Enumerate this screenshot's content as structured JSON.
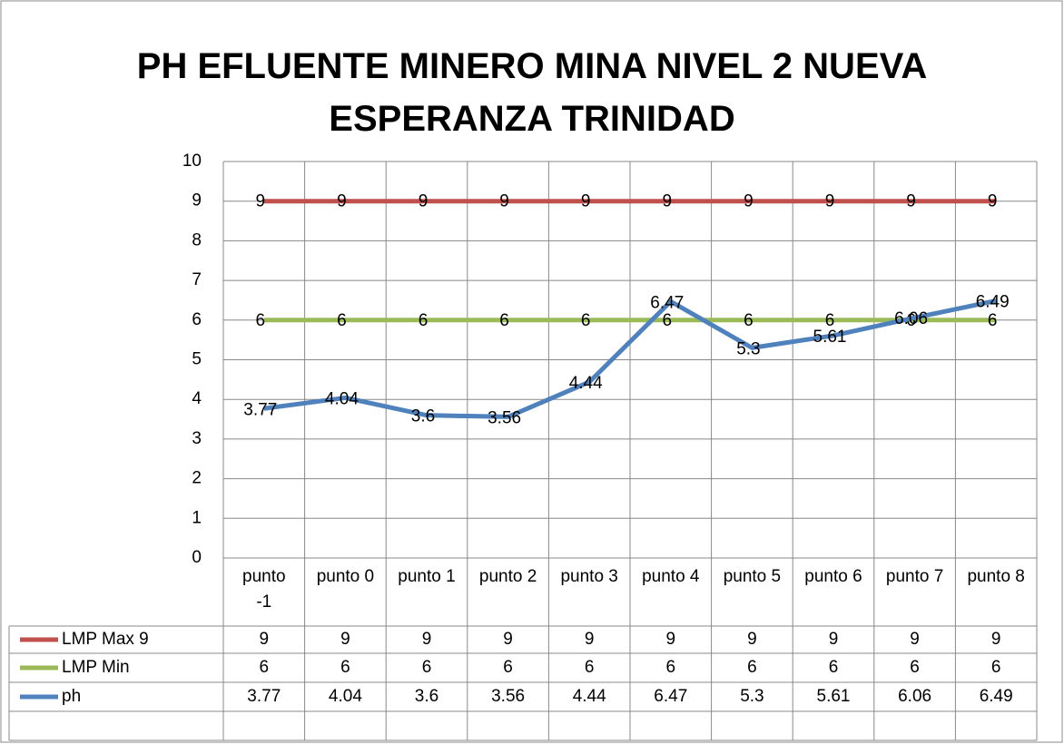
{
  "chart_data": {
    "type": "line",
    "title": "PH EFLUENTE MINERO MINA NIVEL 2 NUEVA ESPERANZA TRINIDAD",
    "categories": [
      "punto -1",
      "punto 0",
      "punto 1",
      "punto 2",
      "punto 3",
      "punto 4",
      "punto 5",
      "punto 6",
      "punto 7",
      "punto 8"
    ],
    "series": [
      {
        "name": "LMP Max 9",
        "color": "#c0504d",
        "values": [
          9,
          9,
          9,
          9,
          9,
          9,
          9,
          9,
          9,
          9
        ]
      },
      {
        "name": "LMP Min",
        "color": "#9bbb59",
        "values": [
          6,
          6,
          6,
          6,
          6,
          6,
          6,
          6,
          6,
          6
        ]
      },
      {
        "name": "ph",
        "color": "#4f81bd",
        "values": [
          3.77,
          4.04,
          3.6,
          3.56,
          4.44,
          6.47,
          5.3,
          5.61,
          6.06,
          6.49
        ]
      }
    ],
    "ylim": [
      0,
      10
    ],
    "yticks": [
      0,
      1,
      2,
      3,
      4,
      5,
      6,
      7,
      8,
      9,
      10
    ],
    "grid": true,
    "data_table": true
  }
}
